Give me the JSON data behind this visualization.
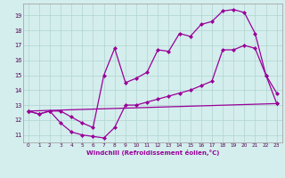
{
  "xlabel": "Windchill (Refroidissement éolien,°C)",
  "bg_color": "#d4eeed",
  "grid_color": "#b0d4d0",
  "line_color": "#990099",
  "marker": "D",
  "markersize": 2.0,
  "linewidth": 0.9,
  "xlim": [
    -0.5,
    23.5
  ],
  "ylim": [
    10.5,
    19.8
  ],
  "yticks": [
    11,
    12,
    13,
    14,
    15,
    16,
    17,
    18,
    19
  ],
  "xticks": [
    0,
    1,
    2,
    3,
    4,
    5,
    6,
    7,
    8,
    9,
    10,
    11,
    12,
    13,
    14,
    15,
    16,
    17,
    18,
    19,
    20,
    21,
    22,
    23
  ],
  "series1_x": [
    0,
    1,
    2,
    3,
    4,
    5,
    6,
    7,
    8,
    9,
    10,
    11,
    12,
    13,
    14,
    15,
    16,
    17,
    18,
    19,
    20,
    21,
    22,
    23
  ],
  "series1_y": [
    12.6,
    12.4,
    12.6,
    12.6,
    12.2,
    11.8,
    11.5,
    15.0,
    16.8,
    14.5,
    14.8,
    15.2,
    16.7,
    16.6,
    17.8,
    17.6,
    18.4,
    18.6,
    19.3,
    19.4,
    19.2,
    17.8,
    15.0,
    13.8
  ],
  "series2_x": [
    0,
    1,
    2,
    3,
    4,
    5,
    6,
    7,
    8,
    9,
    10,
    11,
    12,
    13,
    14,
    15,
    16,
    17,
    18,
    19,
    20,
    21,
    22,
    23
  ],
  "series2_y": [
    12.6,
    12.4,
    12.6,
    11.8,
    11.2,
    11.0,
    10.9,
    10.8,
    11.5,
    13.0,
    13.0,
    13.2,
    13.4,
    13.6,
    13.8,
    14.0,
    14.3,
    14.6,
    16.7,
    16.7,
    17.0,
    16.8,
    15.0,
    13.1
  ],
  "series3_x": [
    0,
    23
  ],
  "series3_y": [
    12.6,
    13.1
  ]
}
